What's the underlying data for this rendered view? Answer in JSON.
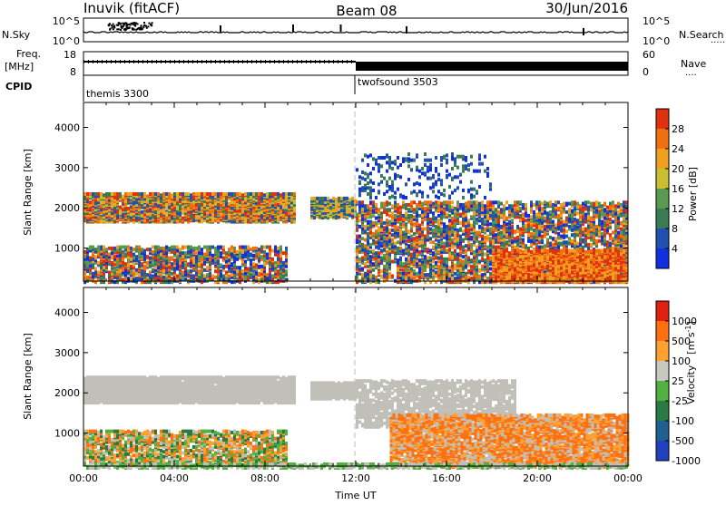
{
  "header": {
    "station": "Inuvik (fitACF)",
    "beam": "Beam 08",
    "date": "30/Jun/2016"
  },
  "chart_data": [
    {
      "type": "line",
      "panel": "noise",
      "left_label": "N.Sky",
      "right_label": "N.Search",
      "left_ticks": [
        "10^5",
        "10^0"
      ],
      "right_ticks": [
        "10^5",
        "10^0"
      ],
      "scale": "log"
    },
    {
      "type": "line",
      "panel": "frequency",
      "left_label_1": "Freq.",
      "left_label_2": "[MHz]",
      "right_label": "Nave",
      "left_ticks": [
        "18",
        "8"
      ],
      "right_ticks": [
        "60",
        "0"
      ],
      "ylim": [
        8,
        18
      ],
      "right_ylim": [
        0,
        60
      ]
    },
    {
      "type": "table",
      "panel": "cpid",
      "label": "CPID",
      "segments": [
        {
          "start_h": 0,
          "end_h": 12,
          "name": "themis 3300"
        },
        {
          "start_h": 12,
          "end_h": 24,
          "name": "twofsound 3503"
        }
      ]
    },
    {
      "type": "heatmap",
      "panel": "power",
      "ylabel": "Slant Range [km]",
      "yticks": [
        "1000",
        "2000",
        "3000",
        "4000"
      ],
      "ylim": [
        180,
        4620
      ],
      "xlim_hours": [
        0,
        24
      ],
      "colorbar_label": "Power [dB]",
      "colorbar_ticks": [
        "4",
        "8",
        "12",
        "16",
        "20",
        "24",
        "28"
      ],
      "colorbar_range": [
        0,
        30
      ]
    },
    {
      "type": "heatmap",
      "panel": "velocity",
      "ylabel": "Slant Range [km]",
      "yticks": [
        "1000",
        "2000",
        "3000",
        "4000"
      ],
      "ylim": [
        180,
        4620
      ],
      "xlim_hours": [
        0,
        24
      ],
      "xlabel": "Time UT",
      "xticks": [
        "00:00",
        "04:00",
        "08:00",
        "12:00",
        "16:00",
        "20:00",
        "00:00"
      ],
      "colorbar_label": "Velocity",
      "colorbar_units": "[m s",
      "colorbar_units_sup": "-1",
      "colorbar_units_end": "]",
      "colorbar_ticks": [
        "1000",
        "500",
        "100",
        "25",
        "-25",
        "-100",
        "-500",
        "-1000"
      ]
    }
  ],
  "colors": {
    "power_scale": [
      "#1030e0",
      "#2050b0",
      "#3a7a55",
      "#5a9a50",
      "#c8c030",
      "#f0a020",
      "#f07010",
      "#e03010"
    ],
    "velocity_scale": [
      "#2040c0",
      "#206090",
      "#2a7a45",
      "#50b040",
      "#c8c8c0",
      "#ffa030",
      "#ff7010",
      "#e02010"
    ],
    "ground_scatter": "#c0c0b8"
  }
}
